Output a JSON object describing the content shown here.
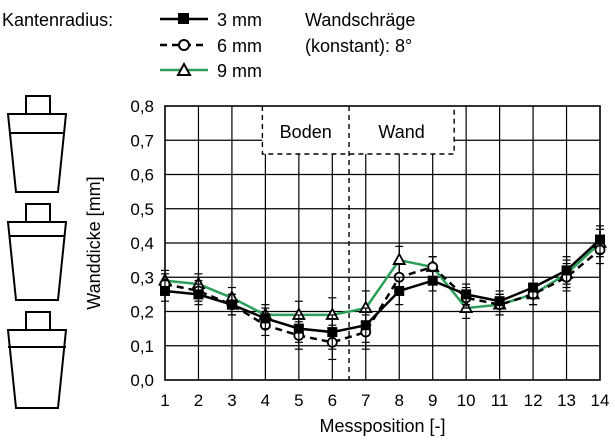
{
  "legend": {
    "title": "Kantenradius:",
    "entries": [
      "3 mm",
      "6 mm",
      "9 mm"
    ]
  },
  "annotation": {
    "line1": "Wandschräge",
    "line2": "(konstant): 8°"
  },
  "regions": {
    "left": "Boden",
    "right": "Wand"
  },
  "colors": {
    "series_3mm": "#000000",
    "series_6mm": "#000000",
    "series_9mm": "#2ca05a"
  },
  "chart_data": {
    "type": "line",
    "xlabel": "Messposition   [-]",
    "ylabel": "Wanddicke   [mm]",
    "x": [
      1,
      2,
      3,
      4,
      5,
      6,
      7,
      8,
      9,
      10,
      11,
      12,
      13,
      14
    ],
    "xlim": [
      1,
      14
    ],
    "ylim": [
      0,
      0.8
    ],
    "x_ticks": [
      "1",
      "2",
      "3",
      "4",
      "5",
      "6",
      "7",
      "8",
      "9",
      "10",
      "11",
      "12",
      "13",
      "14"
    ],
    "y_ticks": [
      "0,0",
      "0,1",
      "0,2",
      "0,3",
      "0,4",
      "0,5",
      "0,6",
      "0,7",
      "0,8"
    ],
    "grid": true,
    "legend_position": "top-left",
    "series": [
      {
        "name": "3 mm",
        "style": "solid",
        "marker": "filled-square",
        "values": [
          0.26,
          0.25,
          0.22,
          0.18,
          0.15,
          0.14,
          0.16,
          0.26,
          0.29,
          0.25,
          0.23,
          0.27,
          0.32,
          0.41
        ],
        "errors": [
          0.03,
          0.03,
          0.03,
          0.03,
          0.04,
          0.05,
          0.05,
          0.04,
          0.03,
          0.03,
          0.03,
          0.03,
          0.04,
          0.04
        ]
      },
      {
        "name": "6 mm",
        "style": "dashed",
        "marker": "open-circle",
        "values": [
          0.28,
          0.26,
          0.22,
          0.16,
          0.13,
          0.11,
          0.14,
          0.3,
          0.33,
          0.24,
          0.22,
          0.25,
          0.3,
          0.38
        ],
        "errors": [
          0.03,
          0.03,
          0.03,
          0.03,
          0.04,
          0.05,
          0.05,
          0.04,
          0.03,
          0.03,
          0.03,
          0.03,
          0.04,
          0.04
        ]
      },
      {
        "name": "9 mm",
        "style": "solid",
        "marker": "open-triangle",
        "values": [
          0.29,
          0.28,
          0.24,
          0.19,
          0.19,
          0.19,
          0.21,
          0.35,
          0.33,
          0.21,
          0.22,
          0.25,
          0.31,
          0.4
        ],
        "errors": [
          0.03,
          0.03,
          0.03,
          0.03,
          0.04,
          0.05,
          0.05,
          0.04,
          0.03,
          0.03,
          0.03,
          0.03,
          0.04,
          0.04
        ]
      }
    ]
  }
}
